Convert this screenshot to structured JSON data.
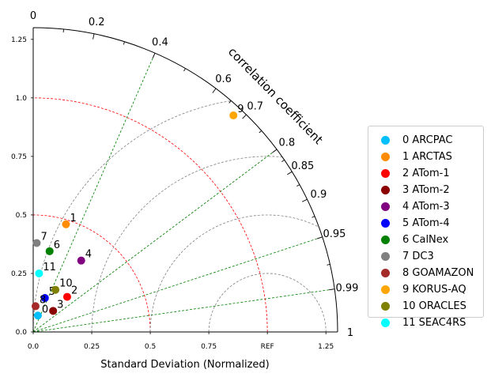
{
  "chart_data": {
    "type": "scatter",
    "title": "",
    "xlabel": "Standard Deviation (Normalized)",
    "ylabel": "",
    "arc_label": "correlation coefficient",
    "std_max": 1.3,
    "std_ticks": [
      0.0,
      0.25,
      0.5,
      0.75,
      1.0,
      1.25
    ],
    "std_tick_labels": [
      "0.0",
      "0.25",
      "0.5",
      "0.75",
      "REF",
      "1.25"
    ],
    "std_tick_labels_y": [
      "0.0",
      "0.25",
      "0.5",
      "0.75",
      "1.0",
      "1.25"
    ],
    "corr_major_ticks": [
      0,
      0.2,
      0.4,
      0.6,
      0.7,
      0.8,
      0.85,
      0.9,
      0.95,
      0.99,
      1
    ],
    "corr_major_tick_labels": [
      "0",
      "0.2",
      "0.4",
      "0.6",
      "0.7",
      "0.8",
      "0.85",
      "0.9",
      "0.95",
      "0.99",
      "1"
    ],
    "corr_minor_ticks": [
      0.1,
      0.3,
      0.5,
      0.65,
      0.75,
      0.825,
      0.875,
      0.925,
      0.975
    ],
    "corr_lines": [
      0.4,
      0.8,
      0.95,
      0.99
    ],
    "std_contours": [
      0.5,
      1.0
    ],
    "rms_contours": [
      0.25,
      0.5,
      0.75,
      1.0
    ],
    "legend_position": "right",
    "colors": {
      "corr_lines": "#008000",
      "std_contours": "#ff0000",
      "rms_contours": "#808080"
    },
    "series": [
      {
        "name": "0 ARCPAC",
        "label": "0",
        "x": 0.02,
        "y": 0.07,
        "color": "#00bfff"
      },
      {
        "name": "1 ARCTAS",
        "label": "1",
        "x": 0.14,
        "y": 0.46,
        "color": "#ff8c00"
      },
      {
        "name": "2 ATom-1",
        "label": "2",
        "x": 0.145,
        "y": 0.15,
        "color": "#ff0000"
      },
      {
        "name": "3 ATom-2",
        "label": "3",
        "x": 0.085,
        "y": 0.09,
        "color": "#8b0000"
      },
      {
        "name": "4 ATom-3",
        "label": "4",
        "x": 0.205,
        "y": 0.305,
        "color": "#800080"
      },
      {
        "name": "5 ATom-4",
        "label": "5",
        "x": 0.05,
        "y": 0.145,
        "color": "#0000ff"
      },
      {
        "name": "6 CalNex",
        "label": "6",
        "x": 0.07,
        "y": 0.345,
        "color": "#008000"
      },
      {
        "name": "7 DC3",
        "label": "7",
        "x": 0.015,
        "y": 0.38,
        "color": "#808080"
      },
      {
        "name": "8 GOAMAZON",
        "label": "8",
        "x": 0.01,
        "y": 0.11,
        "color": "#a52a2a"
      },
      {
        "name": "9 KORUS-AQ",
        "label": "9",
        "x": 0.855,
        "y": 0.925,
        "color": "#ffa500"
      },
      {
        "name": "10 ORACLES",
        "label": "10",
        "x": 0.095,
        "y": 0.18,
        "color": "#808000"
      },
      {
        "name": "11 SEAC4RS",
        "label": "11",
        "x": 0.025,
        "y": 0.25,
        "color": "#00ffff"
      }
    ]
  }
}
